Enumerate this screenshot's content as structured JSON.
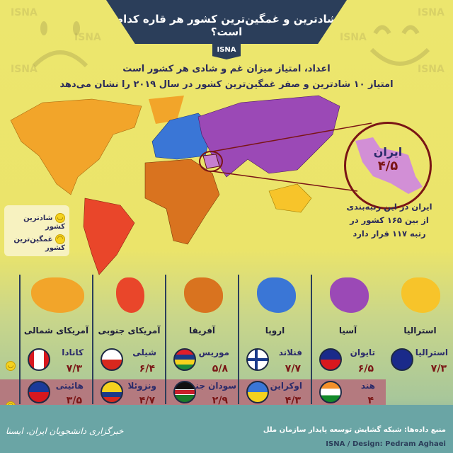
{
  "header": {
    "title": "شادترین و غمگین‌ترین کشور هر قاره کدام است؟",
    "tag": "ISNA"
  },
  "subtitle": {
    "line1": "اعداد، امتیاز میزان غم و شادی هر کشور است",
    "line2": "امتیاز ۱۰ شادترین و صفر غمگین‌ترین کشور در سال ۲۰۱۹ را نشان می‌دهد"
  },
  "watermark": "ISNA",
  "legend": {
    "happy": "شادترین کشور",
    "sad": "غمگین‌ترین کشور"
  },
  "highlight": {
    "country": "ایران",
    "score": "۴/۵",
    "rank_text": [
      "ایران در این رتبه‌بندی",
      "از بین ۱۶۵ کشور در",
      "رتبه ۱۱۷ قرار دارد"
    ]
  },
  "colors": {
    "north_america": "#f2a52a",
    "south_america": "#e9462a",
    "africa": "#d9731f",
    "europe": "#3a76d6",
    "asia": "#9b49b6",
    "australia": "#f7c42a",
    "title_bg": "#2b3e5a",
    "score": "#7a1515",
    "sad_row": "#b47a7f"
  },
  "continents": [
    {
      "name": "استرالیا",
      "happy": {
        "country": "استرالیا",
        "score": "۷/۳",
        "flag": "australia"
      }
    },
    {
      "name": "آسیا",
      "happy": {
        "country": "تایوان",
        "score": "۶/۵",
        "flag": "taiwan"
      },
      "sad": {
        "country": "هند",
        "score": "۴",
        "flag": "india"
      }
    },
    {
      "name": "اروپا",
      "happy": {
        "country": "فنلاند",
        "score": "۷/۷",
        "flag": "finland"
      },
      "sad": {
        "country": "اوکراین",
        "score": "۴/۳",
        "flag": "ukraine"
      }
    },
    {
      "name": "آفریقا",
      "happy": {
        "country": "موریس",
        "score": "۵/۸",
        "flag": "mauritius"
      },
      "sad": {
        "country": "سودان جنوبی",
        "score": "۲/۹",
        "flag": "south-sudan"
      }
    },
    {
      "name": "آمریکای جنوبی",
      "happy": {
        "country": "شیلی",
        "score": "۶/۴",
        "flag": "chile"
      },
      "sad": {
        "country": "ونزوئلا",
        "score": "۴/۷",
        "flag": "venezuela"
      }
    },
    {
      "name": "آمریکای شمالی",
      "happy": {
        "country": "کانادا",
        "score": "۷/۳",
        "flag": "canada"
      },
      "sad": {
        "country": "هائیتی",
        "score": "۳/۵",
        "flag": "haiti"
      }
    }
  ],
  "footer": {
    "source": "منبع داده‌ها: شبکه گشایش توسعه پایدار سازمان ملل",
    "credit": "ISNA / Design: Pedram Aghaei",
    "agency": "خبرگزاری دانشجویان ایران، ایسنا"
  }
}
